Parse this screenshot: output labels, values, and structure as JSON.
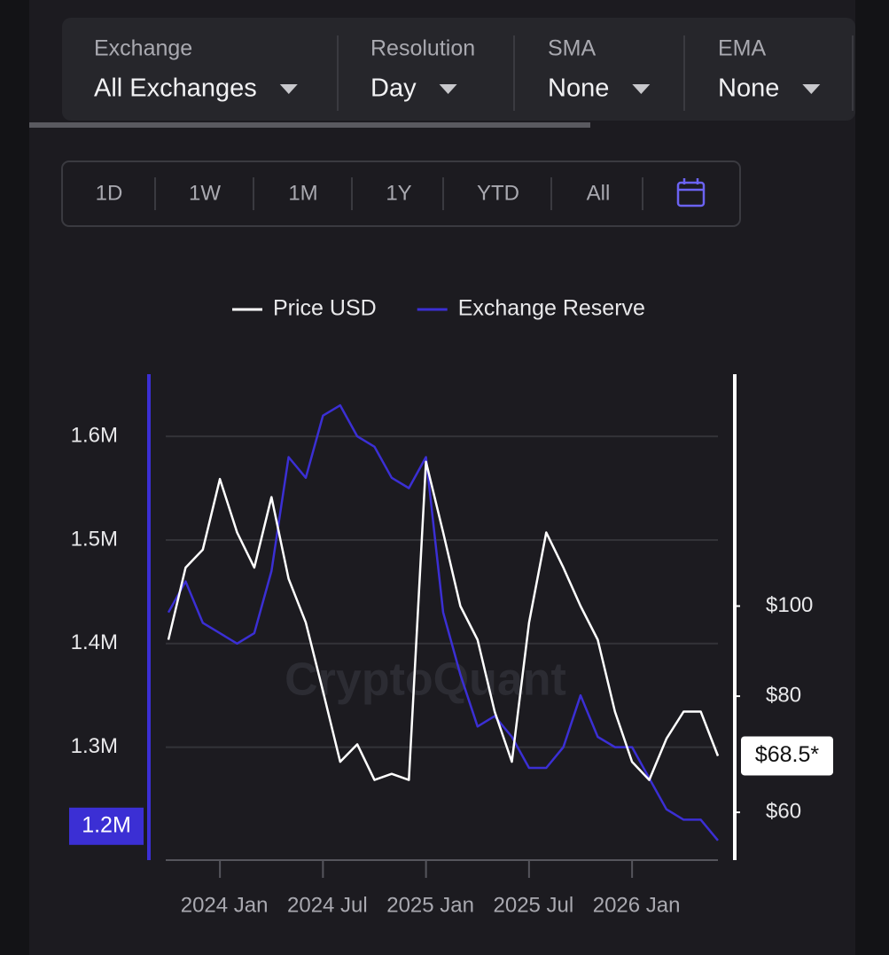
{
  "filters": [
    {
      "label": "Exchange",
      "value": "All Exchanges"
    },
    {
      "label": "Resolution",
      "value": "Day"
    },
    {
      "label": "SMA",
      "value": "None"
    },
    {
      "label": "EMA",
      "value": "None"
    }
  ],
  "ranges": [
    "1D",
    "1W",
    "1M",
    "1Y",
    "YTD",
    "All"
  ],
  "chart_data": {
    "type": "line",
    "watermark": "CryptoQuant",
    "x": [
      "2023-10",
      "2023-11",
      "2023-12",
      "2024-01",
      "2024-02",
      "2024-03",
      "2024-04",
      "2024-05",
      "2024-06",
      "2024-07",
      "2024-08",
      "2024-09",
      "2024-10",
      "2024-11",
      "2024-12",
      "2025-01",
      "2025-02",
      "2025-03",
      "2025-04",
      "2025-05",
      "2025-06",
      "2025-07",
      "2025-08",
      "2025-09",
      "2025-10",
      "2025-11",
      "2025-12",
      "2026-01",
      "2026-02",
      "2026-03",
      "2026-04",
      "2026-05",
      "2026-06"
    ],
    "xlim": [
      "2023-10",
      "2026-06"
    ],
    "xticks": [
      {
        "value": "2024-01",
        "label": "2024 Jan"
      },
      {
        "value": "2024-07",
        "label": "2024 Jul"
      },
      {
        "value": "2025-01",
        "label": "2025 Jan"
      },
      {
        "value": "2025-07",
        "label": "2025 Jul"
      },
      {
        "value": "2026-01",
        "label": "2026 Jan"
      }
    ],
    "ylim": [
      1191000,
      1660000
    ],
    "yticks": [
      {
        "value": 1300000,
        "label": "1.3M"
      },
      {
        "value": 1400000,
        "label": "1.4M"
      },
      {
        "value": 1500000,
        "label": "1.5M"
      },
      {
        "value": 1600000,
        "label": "1.6M"
      }
    ],
    "y2lim": [
      53.3,
      177.6
    ],
    "y2ticks": [
      {
        "value": 60,
        "label": "$60"
      },
      {
        "value": 80,
        "label": "$80"
      },
      {
        "value": 100,
        "label": "$100"
      }
    ],
    "y2_log": true,
    "grid": true,
    "legend": "top",
    "y_current_label": "1.2M",
    "y2_current_label": "$68.5*",
    "series": [
      {
        "name": "Price USD",
        "color": "#ffffff",
        "axis": "y2",
        "values": [
          92,
          110,
          115,
          137,
          120,
          110,
          131,
          107,
          96,
          81,
          68,
          71,
          65,
          66,
          65,
          143,
          120,
          100,
          92,
          77,
          68,
          96,
          120,
          110,
          100,
          92,
          77,
          68,
          65,
          72,
          77,
          77,
          69
        ]
      },
      {
        "name": "Exchange Reserve",
        "color": "#3b2fd4",
        "values": [
          1430000,
          1460000,
          1420000,
          1410000,
          1400000,
          1410000,
          1470000,
          1580000,
          1560000,
          1620000,
          1630000,
          1600000,
          1590000,
          1560000,
          1550000,
          1580000,
          1430000,
          1370000,
          1320000,
          1330000,
          1310000,
          1280000,
          1280000,
          1300000,
          1350000,
          1310000,
          1300000,
          1300000,
          1270000,
          1240000,
          1230000,
          1230000,
          1210000
        ]
      }
    ]
  }
}
